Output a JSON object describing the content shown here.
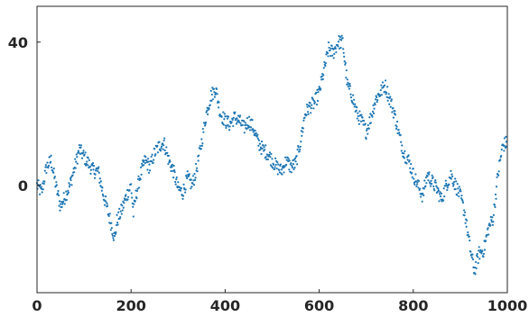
{
  "chart_data": {
    "type": "scatter",
    "title": "",
    "xlabel": "",
    "ylabel": "",
    "xlim": [
      0,
      1000
    ],
    "ylim": [
      -30,
      50
    ],
    "x_ticks": [
      0,
      200,
      400,
      600,
      800,
      1000
    ],
    "x_tick_labels": [
      "0",
      "200",
      "400",
      "600",
      "800",
      "1000"
    ],
    "y_ticks": [
      0,
      40
    ],
    "y_tick_labels": [
      "0",
      "40"
    ],
    "grid": false,
    "legend": "none",
    "marker_color": "#1f77b4",
    "n_points": 1000,
    "series": [
      {
        "trace": [
          [
            0,
            0
          ],
          [
            10,
            -2
          ],
          [
            20,
            5
          ],
          [
            30,
            7
          ],
          [
            40,
            0
          ],
          [
            50,
            -6
          ],
          [
            60,
            -3
          ],
          [
            70,
            0
          ],
          [
            80,
            5
          ],
          [
            90,
            10
          ],
          [
            100,
            8
          ],
          [
            110,
            6
          ],
          [
            120,
            4
          ],
          [
            130,
            4
          ],
          [
            140,
            -2
          ],
          [
            150,
            -7
          ],
          [
            160,
            -12
          ],
          [
            165,
            -15
          ],
          [
            170,
            -10
          ],
          [
            180,
            -7
          ],
          [
            190,
            -3
          ],
          [
            200,
            0
          ],
          [
            205,
            -8
          ],
          [
            210,
            -3
          ],
          [
            220,
            3
          ],
          [
            230,
            7
          ],
          [
            240,
            5
          ],
          [
            250,
            9
          ],
          [
            260,
            11
          ],
          [
            270,
            12
          ],
          [
            280,
            7
          ],
          [
            290,
            4
          ],
          [
            300,
            -1
          ],
          [
            310,
            -2
          ],
          [
            320,
            2
          ],
          [
            330,
            0
          ],
          [
            340,
            5
          ],
          [
            350,
            12
          ],
          [
            360,
            20
          ],
          [
            370,
            25
          ],
          [
            380,
            27
          ],
          [
            390,
            20
          ],
          [
            400,
            18
          ],
          [
            410,
            17
          ],
          [
            420,
            19
          ],
          [
            430,
            18
          ],
          [
            440,
            16
          ],
          [
            450,
            18
          ],
          [
            460,
            16
          ],
          [
            470,
            12
          ],
          [
            480,
            10
          ],
          [
            490,
            9
          ],
          [
            500,
            7
          ],
          [
            510,
            5
          ],
          [
            520,
            4
          ],
          [
            530,
            7
          ],
          [
            540,
            5
          ],
          [
            550,
            6
          ],
          [
            560,
            12
          ],
          [
            570,
            20
          ],
          [
            580,
            22
          ],
          [
            590,
            23
          ],
          [
            600,
            26
          ],
          [
            610,
            32
          ],
          [
            620,
            38
          ],
          [
            630,
            37
          ],
          [
            640,
            40
          ],
          [
            650,
            40
          ],
          [
            660,
            28
          ],
          [
            670,
            25
          ],
          [
            680,
            20
          ],
          [
            690,
            18
          ],
          [
            700,
            15
          ],
          [
            710,
            19
          ],
          [
            720,
            24
          ],
          [
            730,
            26
          ],
          [
            740,
            28
          ],
          [
            750,
            24
          ],
          [
            760,
            20
          ],
          [
            770,
            14
          ],
          [
            780,
            9
          ],
          [
            790,
            7
          ],
          [
            800,
            3
          ],
          [
            810,
            0
          ],
          [
            820,
            -3
          ],
          [
            830,
            3
          ],
          [
            840,
            1
          ],
          [
            850,
            -1
          ],
          [
            860,
            -4
          ],
          [
            870,
            0
          ],
          [
            880,
            3
          ],
          [
            890,
            0
          ],
          [
            900,
            -3
          ],
          [
            910,
            -8
          ],
          [
            920,
            -17
          ],
          [
            930,
            -24
          ],
          [
            940,
            -19
          ],
          [
            950,
            -18
          ],
          [
            960,
            -12
          ],
          [
            970,
            -9
          ],
          [
            980,
            3
          ],
          [
            990,
            11
          ],
          [
            999,
            12
          ]
        ]
      }
    ]
  }
}
